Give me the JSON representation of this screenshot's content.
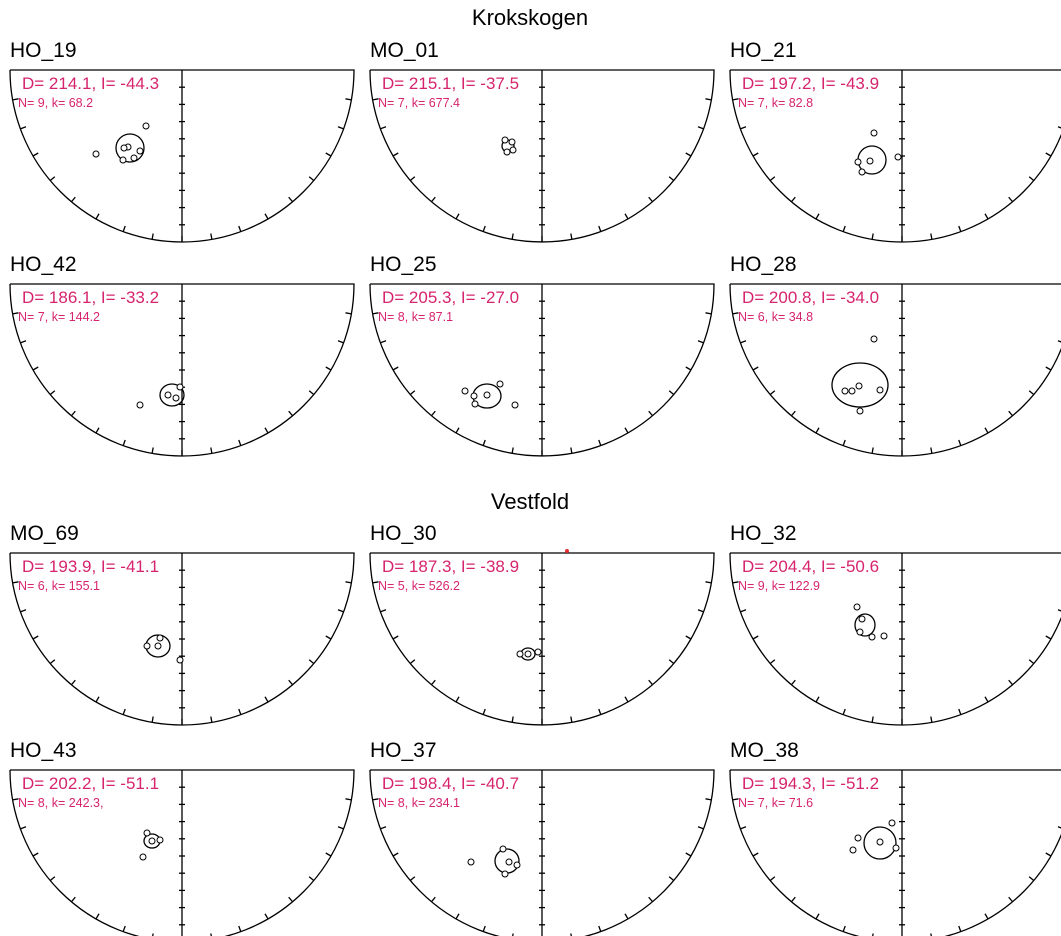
{
  "groups": [
    {
      "title": "Krokskogen",
      "panels": [
        {
          "name": "HO_19",
          "mean": "D=  214.1, I=  -44.3",
          "stats": "N= 9, k= 68.2"
        },
        {
          "name": "MO_01",
          "mean": "D=  215.1, I=  -37.5",
          "stats": "N= 7, k= 677.4"
        },
        {
          "name": "HO_21",
          "mean": "D=  197.2, I=  -43.9",
          "stats": "N= 7, k= 82.8"
        },
        {
          "name": "HO_42",
          "mean": "D=  186.1, I=  -33.2",
          "stats": "N= 7, k= 144.2"
        },
        {
          "name": "HO_25",
          "mean": "D=  205.3, I=  -27.0",
          "stats": "N= 8, k= 87.1"
        },
        {
          "name": "HO_28",
          "mean": "D=  200.8, I=  -34.0",
          "stats": "N= 6, k= 34.8"
        }
      ]
    },
    {
      "title": "Vestfold",
      "panels": [
        {
          "name": "MO_69",
          "mean": "D=  193.9, I=  -41.1",
          "stats": "N= 6, k= 155.1"
        },
        {
          "name": "HO_30",
          "mean": "D=  187.3, I=  -38.9",
          "stats": "N= 5, k= 526.2"
        },
        {
          "name": "HO_32",
          "mean": "D=  204.4, I=  -50.6",
          "stats": "N= 9, k= 122.9"
        },
        {
          "name": "HO_43",
          "mean": "D=  202.2, I=  -51.1",
          "stats": "N= 8, k= 242.3,"
        },
        {
          "name": "HO_37",
          "mean": "D=  198.4, I=  -40.7",
          "stats": "N= 8, k= 234.1"
        },
        {
          "name": "MO_38",
          "mean": "D=  194.3, I=  -51.2",
          "stats": "N= 7, k= 71.6"
        }
      ]
    }
  ]
}
